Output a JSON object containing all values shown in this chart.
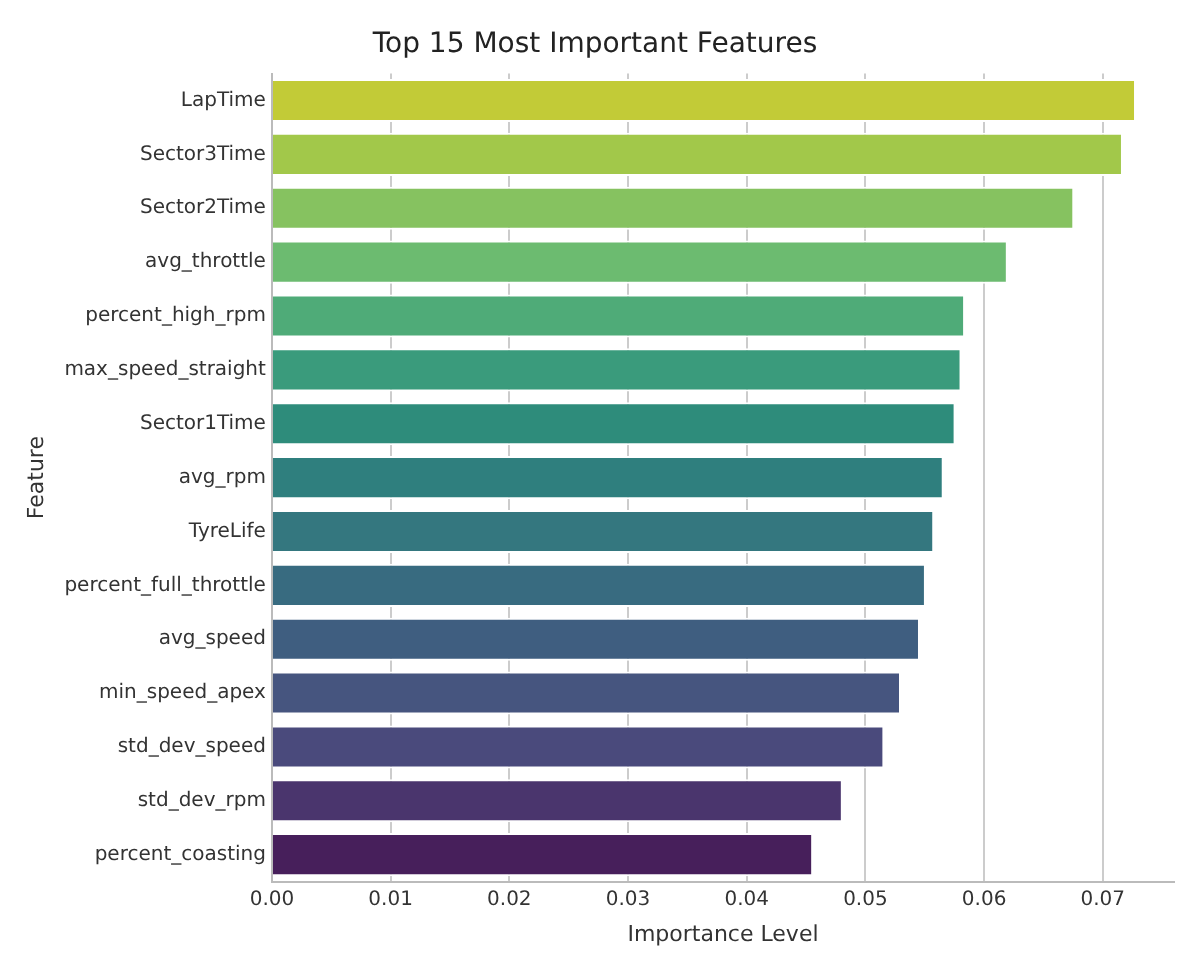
{
  "chart_data": {
    "type": "bar",
    "orientation": "horizontal",
    "title": "Top 15 Most Important Features",
    "xlabel": "Importance Level",
    "ylabel": "Feature",
    "categories": [
      "LapTime",
      "Sector3Time",
      "Sector2Time",
      "avg_throttle",
      "percent_high_rpm",
      "max_speed_straight",
      "Sector1Time",
      "avg_rpm",
      "TyreLife",
      "percent_full_throttle",
      "avg_speed",
      "min_speed_apex",
      "std_dev_speed",
      "std_dev_rpm",
      "percent_coasting"
    ],
    "values": [
      0.0728,
      0.0717,
      0.0676,
      0.062,
      0.0584,
      0.0581,
      0.0576,
      0.0566,
      0.0558,
      0.0551,
      0.0546,
      0.053,
      0.0516,
      0.0481,
      0.0456
    ],
    "colors": [
      "#c2cb37",
      "#a2c84a",
      "#86c260",
      "#6cbb70",
      "#4fab78",
      "#3a9b7c",
      "#2e8c7b",
      "#2f7f7e",
      "#34777f",
      "#386b80",
      "#3f5e80",
      "#46557f",
      "#4a4a7c",
      "#4a356d",
      "#471f5b"
    ],
    "xlim": [
      0,
      0.076
    ],
    "xticks": [
      {
        "value": 0,
        "label": "0.00"
      },
      {
        "value": 0.01,
        "label": "0.01"
      },
      {
        "value": 0.02,
        "label": "0.02"
      },
      {
        "value": 0.03,
        "label": "0.03"
      },
      {
        "value": 0.04,
        "label": "0.04"
      },
      {
        "value": 0.05,
        "label": "0.05"
      },
      {
        "value": 0.06,
        "label": "0.06"
      },
      {
        "value": 0.07,
        "label": "0.07"
      }
    ],
    "grid": "x"
  }
}
